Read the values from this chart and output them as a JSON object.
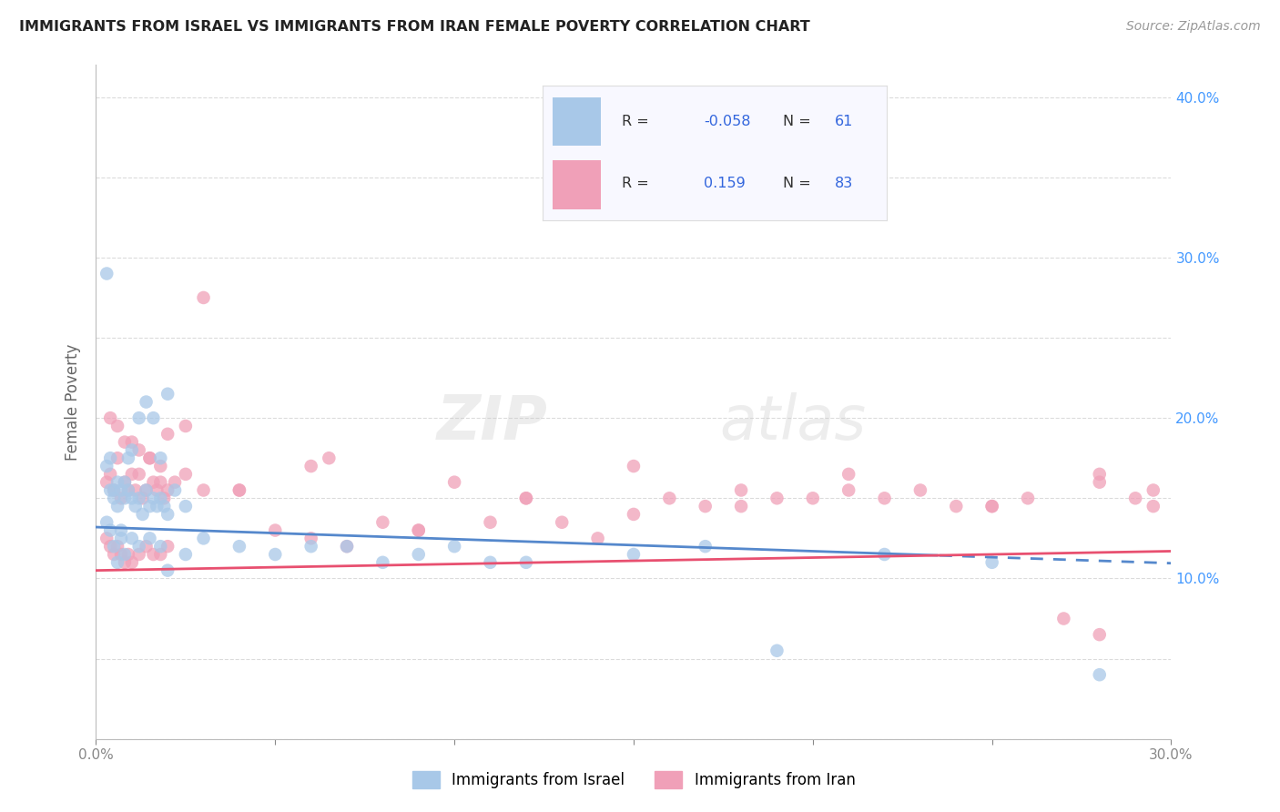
{
  "title": "IMMIGRANTS FROM ISRAEL VS IMMIGRANTS FROM IRAN FEMALE POVERTY CORRELATION CHART",
  "source": "Source: ZipAtlas.com",
  "ylabel": "Female Poverty",
  "xlim": [
    0.0,
    0.3
  ],
  "ylim": [
    0.0,
    0.42
  ],
  "xtick_positions": [
    0.0,
    0.05,
    0.1,
    0.15,
    0.2,
    0.25,
    0.3
  ],
  "xtick_labels": [
    "0.0%",
    "",
    "",
    "",
    "",
    "",
    "30.0%"
  ],
  "ytick_positions": [
    0.0,
    0.05,
    0.1,
    0.15,
    0.2,
    0.25,
    0.3,
    0.35,
    0.4
  ],
  "ytick_labels_right": [
    "",
    "",
    "10.0%",
    "",
    "20.0%",
    "",
    "30.0%",
    "",
    "40.0%"
  ],
  "israel_color": "#a8c8e8",
  "iran_color": "#f0a0b8",
  "israel_line_color": "#5588cc",
  "iran_line_color": "#e85070",
  "background_color": "#ffffff",
  "grid_color": "#cccccc",
  "legend_box_color": "#f8f8ff",
  "legend_border_color": "#dddddd",
  "right_axis_color": "#4499ff",
  "title_color": "#222222",
  "source_color": "#999999",
  "ylabel_color": "#666666",
  "watermark_text": "ZIPatlas",
  "israel_intercept": 0.132,
  "israel_slope": -0.075,
  "iran_intercept": 0.105,
  "iran_slope": 0.04,
  "israel_x": [
    0.003,
    0.004,
    0.005,
    0.006,
    0.007,
    0.008,
    0.009,
    0.01,
    0.011,
    0.012,
    0.013,
    0.014,
    0.015,
    0.016,
    0.017,
    0.018,
    0.019,
    0.02,
    0.022,
    0.025,
    0.003,
    0.004,
    0.005,
    0.006,
    0.007,
    0.008,
    0.009,
    0.01,
    0.012,
    0.014,
    0.016,
    0.018,
    0.02,
    0.003,
    0.004,
    0.005,
    0.006,
    0.007,
    0.008,
    0.01,
    0.012,
    0.015,
    0.018,
    0.02,
    0.025,
    0.03,
    0.04,
    0.05,
    0.06,
    0.07,
    0.08,
    0.09,
    0.1,
    0.11,
    0.12,
    0.15,
    0.17,
    0.19,
    0.22,
    0.25,
    0.28
  ],
  "israel_y": [
    0.29,
    0.155,
    0.15,
    0.145,
    0.13,
    0.16,
    0.155,
    0.15,
    0.145,
    0.15,
    0.14,
    0.155,
    0.145,
    0.15,
    0.145,
    0.15,
    0.145,
    0.14,
    0.155,
    0.145,
    0.17,
    0.175,
    0.155,
    0.16,
    0.155,
    0.15,
    0.175,
    0.18,
    0.2,
    0.21,
    0.2,
    0.175,
    0.215,
    0.135,
    0.13,
    0.12,
    0.11,
    0.125,
    0.115,
    0.125,
    0.12,
    0.125,
    0.12,
    0.105,
    0.115,
    0.125,
    0.12,
    0.115,
    0.12,
    0.12,
    0.11,
    0.115,
    0.12,
    0.11,
    0.11,
    0.115,
    0.12,
    0.055,
    0.115,
    0.11,
    0.04
  ],
  "iran_x": [
    0.003,
    0.004,
    0.005,
    0.006,
    0.007,
    0.008,
    0.009,
    0.01,
    0.011,
    0.012,
    0.013,
    0.014,
    0.015,
    0.016,
    0.017,
    0.018,
    0.019,
    0.02,
    0.022,
    0.025,
    0.003,
    0.004,
    0.005,
    0.006,
    0.007,
    0.008,
    0.009,
    0.01,
    0.012,
    0.014,
    0.016,
    0.018,
    0.02,
    0.004,
    0.006,
    0.008,
    0.01,
    0.012,
    0.015,
    0.018,
    0.02,
    0.025,
    0.03,
    0.04,
    0.05,
    0.06,
    0.07,
    0.08,
    0.09,
    0.1,
    0.11,
    0.12,
    0.13,
    0.14,
    0.15,
    0.16,
    0.17,
    0.18,
    0.19,
    0.2,
    0.21,
    0.22,
    0.23,
    0.24,
    0.25,
    0.26,
    0.27,
    0.28,
    0.29,
    0.295,
    0.04,
    0.065,
    0.09,
    0.12,
    0.15,
    0.18,
    0.21,
    0.25,
    0.28,
    0.295,
    0.03,
    0.06,
    0.28
  ],
  "iran_y": [
    0.16,
    0.165,
    0.155,
    0.175,
    0.15,
    0.16,
    0.155,
    0.165,
    0.155,
    0.165,
    0.15,
    0.155,
    0.175,
    0.16,
    0.155,
    0.16,
    0.15,
    0.155,
    0.16,
    0.165,
    0.125,
    0.12,
    0.115,
    0.12,
    0.115,
    0.11,
    0.115,
    0.11,
    0.115,
    0.12,
    0.115,
    0.115,
    0.12,
    0.2,
    0.195,
    0.185,
    0.185,
    0.18,
    0.175,
    0.17,
    0.19,
    0.195,
    0.275,
    0.155,
    0.13,
    0.125,
    0.12,
    0.135,
    0.13,
    0.16,
    0.135,
    0.15,
    0.135,
    0.125,
    0.14,
    0.15,
    0.145,
    0.145,
    0.15,
    0.15,
    0.155,
    0.15,
    0.155,
    0.145,
    0.145,
    0.15,
    0.075,
    0.165,
    0.15,
    0.145,
    0.155,
    0.175,
    0.13,
    0.15,
    0.17,
    0.155,
    0.165,
    0.145,
    0.16,
    0.155,
    0.155,
    0.17,
    0.065
  ]
}
